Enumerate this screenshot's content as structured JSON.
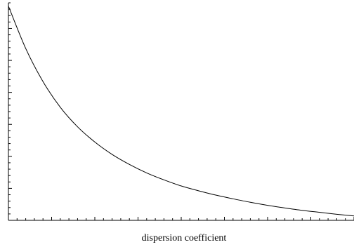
{
  "chart_data": {
    "type": "line",
    "title": "",
    "xlabel": "dispersion coefficient",
    "ylabel": "",
    "xlim": [
      0,
      1
    ],
    "ylim": [
      0,
      1
    ],
    "grid": false,
    "legend": "none",
    "tick_labels": "none",
    "x_minor_ticks": 41,
    "y_minor_ticks": 35,
    "series": [
      {
        "x": [
          0,
          0.05,
          0.1,
          0.15,
          0.2,
          0.25,
          0.3,
          0.35,
          0.4,
          0.45,
          0.5,
          0.55,
          0.6,
          0.65,
          0.7,
          0.75,
          0.8,
          0.85,
          0.9,
          0.95,
          1.0
        ],
        "values": [
          0.985,
          0.79,
          0.638,
          0.52,
          0.43,
          0.36,
          0.303,
          0.257,
          0.218,
          0.186,
          0.158,
          0.136,
          0.116,
          0.099,
          0.083,
          0.069,
          0.057,
          0.046,
          0.037,
          0.028,
          0.02
        ],
        "color": "#000000"
      }
    ]
  }
}
